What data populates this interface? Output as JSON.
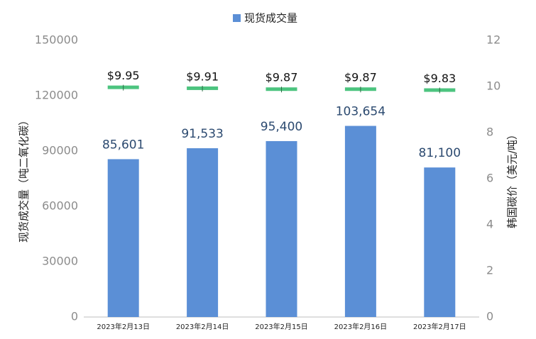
{
  "chart_data": {
    "type": "bar",
    "categories": [
      "2023年2月13日",
      "2023年2月14日",
      "2023年2月15日",
      "2023年2月16日",
      "2023年2月17日"
    ],
    "series": [
      {
        "name": "现货成交量",
        "color": "#5b8fd6",
        "values": [
          85601,
          91533,
          95400,
          103654,
          81100
        ],
        "value_labels": [
          "85,601",
          "91,533",
          "95,400",
          "103,654",
          "81,100"
        ]
      },
      {
        "color": "#4cc47f",
        "axis": "y2",
        "values": [
          9.95,
          9.91,
          9.87,
          9.87,
          9.83
        ],
        "value_labels": [
          "$9.95",
          "$9.91",
          "$9.87",
          "$9.87",
          "$9.83"
        ]
      }
    ],
    "ylabel": "现货成交量（吨二氧化碳）",
    "y2label": "韩国碳价（美元/吨）",
    "ylim": [
      0,
      150000
    ],
    "yticks": [
      0,
      30000,
      60000,
      90000,
      120000,
      150000
    ],
    "y2lim": [
      0,
      12
    ],
    "y2ticks": [
      0,
      2,
      4,
      6,
      8,
      10,
      12
    ]
  }
}
